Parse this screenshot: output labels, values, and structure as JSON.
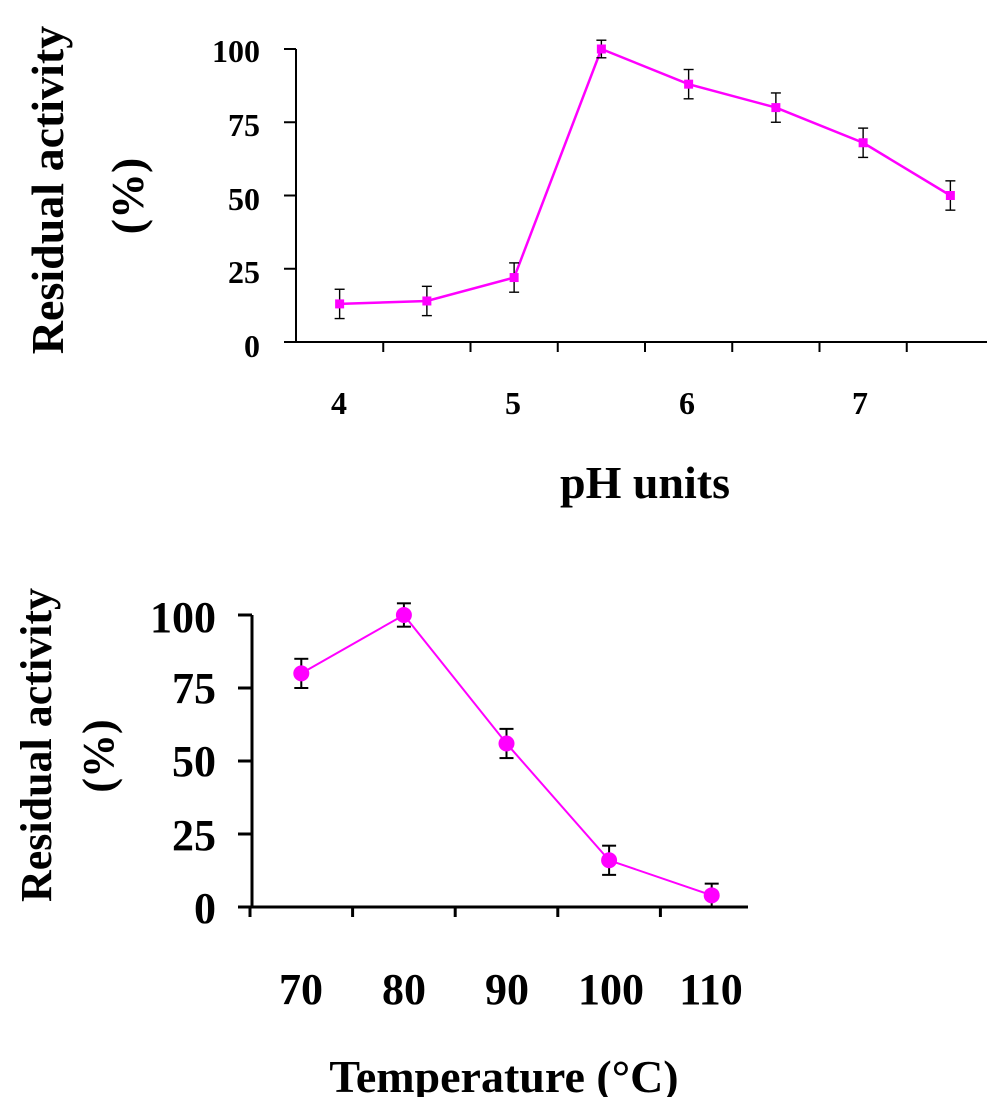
{
  "chart_data": [
    {
      "type": "line",
      "xlabel": "pH units",
      "ylabel_line1": "Residual activity",
      "ylabel_line2": "(%)",
      "ylim": [
        0,
        100
      ],
      "yticks": [
        "0",
        "25",
        "50",
        "75",
        "100"
      ],
      "xticks": [
        "4",
        "5",
        "6",
        "7"
      ],
      "marker": "square",
      "grid": false,
      "color": "#ff00ff",
      "series": [
        {
          "x": [
            3.75,
            4.25,
            4.75,
            5.25,
            5.75,
            6.25,
            6.75,
            7.25
          ],
          "y": [
            13,
            14,
            22,
            100,
            88,
            80,
            68,
            50
          ],
          "error": [
            5,
            5,
            5,
            3,
            5,
            5,
            5,
            5
          ]
        }
      ]
    },
    {
      "type": "line",
      "xlabel": "Temperature (°C)",
      "ylabel_line1": "Residual activity",
      "ylabel_line2": "(%)",
      "ylim": [
        0,
        100
      ],
      "yticks": [
        "0",
        "25",
        "50",
        "75",
        "100"
      ],
      "xticks": [
        "70",
        "80",
        "90",
        "100",
        "110"
      ],
      "marker": "circle",
      "grid": false,
      "color": "#ff00ff",
      "series": [
        {
          "x": [
            70,
            80,
            90,
            100,
            110
          ],
          "y": [
            80,
            100,
            56,
            16,
            4
          ],
          "error": [
            5,
            4,
            5,
            5,
            4
          ]
        }
      ]
    }
  ]
}
